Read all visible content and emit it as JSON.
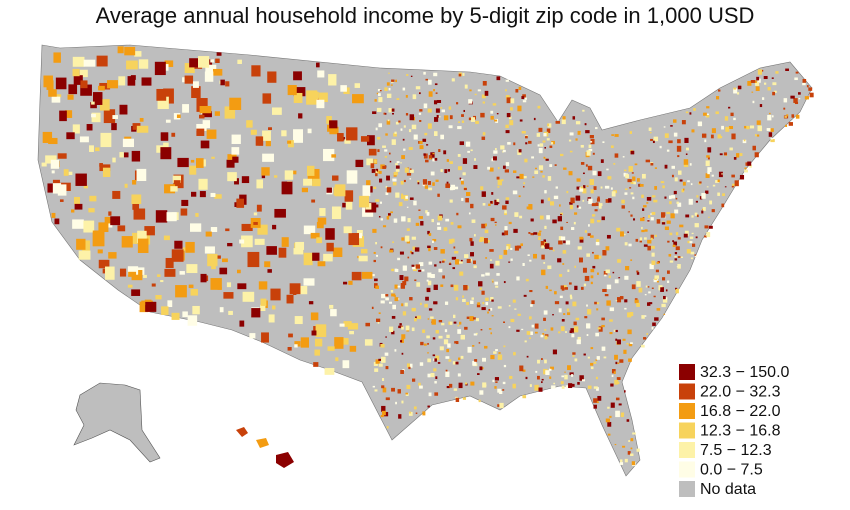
{
  "title": "Average annual household income by 5-digit zip code in 1,000 USD",
  "legend": {
    "items": [
      {
        "label": "32.3 − 150.0",
        "color": "#8b0000"
      },
      {
        "label": "22.0 − 32.3",
        "color": "#c8410a"
      },
      {
        "label": "16.8 − 22.0",
        "color": "#f39c12"
      },
      {
        "label": "12.3 − 16.8",
        "color": "#f7d35c"
      },
      {
        "label": "7.5 − 12.3",
        "color": "#fdf2a8"
      },
      {
        "label": "0.0 − 7.5",
        "color": "#fffde6"
      },
      {
        "label": "No data",
        "color": "#bebebe"
      }
    ]
  }
}
